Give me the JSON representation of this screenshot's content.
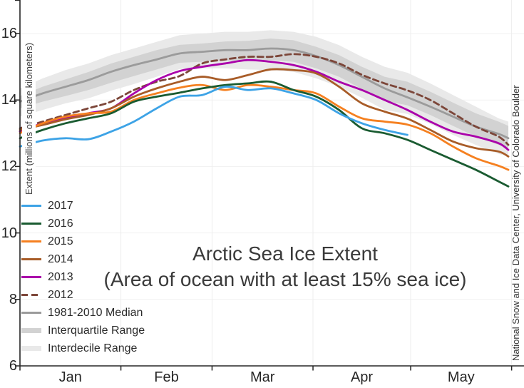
{
  "title": {
    "line1": "Arctic Sea Ice Extent",
    "line2": "(Area of ocean with at least 15% sea ice)"
  },
  "y_axis": {
    "label": "Extent (millions of square kilometers)",
    "tick_values": [
      16,
      14,
      12,
      10,
      8,
      6
    ],
    "gridline_values": [
      16,
      14,
      12,
      10,
      8
    ]
  },
  "x_axis": {
    "month_labels": [
      "Jan",
      "Feb",
      "Mar",
      "Apr",
      "May"
    ],
    "month_start_days": [
      0,
      31,
      59,
      90,
      120,
      151
    ]
  },
  "side_note": "National Snow and Ice Data Center, University of Colorado Boulder",
  "colors": {
    "axis": "#262626",
    "grid_vertical": "#ededed",
    "grid_horizontal": "#f1f1f1",
    "median": "#9b9b9b",
    "interquartile": "#d2d2d2",
    "interdecile": "#e9e9e9",
    "y2017": "#3da3e6",
    "y2016": "#1a5b31",
    "y2015": "#f58020",
    "y2014": "#a85c28",
    "y2013": "#aa00aa",
    "y2012": "#7c4639"
  },
  "legend": [
    {
      "label": "2017",
      "swatch": "line",
      "color": "#3da3e6"
    },
    {
      "label": "2016",
      "swatch": "line",
      "color": "#1a5b31"
    },
    {
      "label": "2015",
      "swatch": "line",
      "color": "#f58020"
    },
    {
      "label": "2014",
      "swatch": "line",
      "color": "#a85c28"
    },
    {
      "label": "2013",
      "swatch": "line",
      "color": "#aa00aa"
    },
    {
      "label": "2012",
      "swatch": "dashed-line",
      "color": "#7c4639"
    },
    {
      "label": "1981-2010 Median",
      "swatch": "line",
      "color": "#9b9b9b"
    },
    {
      "label": "Interquartile Range",
      "swatch": "band",
      "color": "#d2d2d2"
    },
    {
      "label": "Interdecile Range",
      "swatch": "band",
      "color": "#e9e9e9"
    }
  ],
  "chart_data": {
    "type": "line",
    "title": "Arctic Sea Ice Extent",
    "subtitle": "(Area of ocean with at least 15% sea ice)",
    "ylabel": "Extent (millions of square kilometers)",
    "xlabel": "",
    "ylim": [
      6,
      17
    ],
    "x_unit": "day of year (Jan 1 = 0)",
    "grid": true,
    "legend_position": "left",
    "x_days": [
      0,
      7,
      14,
      21,
      28,
      35,
      42,
      49,
      56,
      63,
      70,
      77,
      84,
      91,
      98,
      105,
      112,
      119,
      126,
      133,
      140,
      147,
      150
    ],
    "x_tick_days": [
      0,
      31,
      59,
      90,
      120,
      151
    ],
    "x_tick_labels": [
      "Jan",
      "Feb",
      "Mar",
      "Apr",
      "May"
    ],
    "bands": [
      {
        "name": "Interdecile Range",
        "color": "#e9e9e9",
        "top": [
          14.35,
          14.65,
          14.9,
          15.1,
          15.35,
          15.55,
          15.75,
          15.95,
          16.0,
          16.05,
          16.05,
          16.1,
          16.05,
          15.9,
          15.65,
          15.3,
          15.0,
          14.82,
          14.5,
          14.15,
          13.8,
          13.45,
          13.35
        ],
        "bottom": [
          13.5,
          13.7,
          13.9,
          14.05,
          14.28,
          14.48,
          14.7,
          14.93,
          14.95,
          14.95,
          14.92,
          14.9,
          14.85,
          14.65,
          14.4,
          14.07,
          13.7,
          13.58,
          13.28,
          12.95,
          12.65,
          12.38,
          12.3
        ]
      },
      {
        "name": "Interquartile Range",
        "color": "#d2d2d2",
        "top": [
          14.12,
          14.4,
          14.62,
          14.84,
          15.1,
          15.3,
          15.5,
          15.66,
          15.7,
          15.76,
          15.78,
          15.85,
          15.8,
          15.6,
          15.35,
          15.0,
          14.7,
          14.55,
          14.25,
          13.92,
          13.6,
          13.35,
          13.22
        ],
        "bottom": [
          13.75,
          13.95,
          14.12,
          14.3,
          14.52,
          14.72,
          14.92,
          15.12,
          15.15,
          15.18,
          15.18,
          15.2,
          15.15,
          14.95,
          14.7,
          14.33,
          13.98,
          13.84,
          13.55,
          13.22,
          12.9,
          12.65,
          12.56
        ]
      }
    ],
    "series": [
      {
        "name": "1981-2010 Median",
        "color": "#9b9b9b",
        "style": "solid",
        "width": 2.8,
        "values": [
          13.95,
          14.2,
          14.4,
          14.6,
          14.85,
          15.05,
          15.22,
          15.4,
          15.45,
          15.5,
          15.5,
          15.55,
          15.5,
          15.32,
          15.05,
          14.7,
          14.35,
          14.08,
          13.8,
          13.5,
          13.2,
          12.98,
          12.85
        ]
      },
      {
        "name": "2012",
        "color": "#7c4639",
        "style": "dashed",
        "width": 2.8,
        "values": [
          13.15,
          13.35,
          13.55,
          13.75,
          13.95,
          14.3,
          14.55,
          14.72,
          15.1,
          15.22,
          15.3,
          15.3,
          15.38,
          15.3,
          15.1,
          14.76,
          14.5,
          14.29,
          14.0,
          13.6,
          13.2,
          12.9,
          12.65
        ]
      },
      {
        "name": "2013",
        "color": "#aa00aa",
        "style": "solid",
        "width": 2.8,
        "values": [
          13.05,
          13.3,
          13.45,
          13.6,
          13.75,
          14.2,
          14.6,
          14.87,
          15.0,
          15.1,
          15.2,
          15.15,
          15.05,
          14.85,
          14.55,
          14.3,
          14.0,
          13.7,
          13.35,
          13.05,
          12.9,
          12.7,
          12.5
        ]
      },
      {
        "name": "2014",
        "color": "#a85c28",
        "style": "solid",
        "width": 2.8,
        "values": [
          13.1,
          13.25,
          13.42,
          13.55,
          13.75,
          14.1,
          14.35,
          14.55,
          14.7,
          14.6,
          14.75,
          14.92,
          14.9,
          14.8,
          14.4,
          13.9,
          13.65,
          13.44,
          13.1,
          12.75,
          12.55,
          12.45,
          12.3
        ]
      },
      {
        "name": "2015",
        "color": "#f58020",
        "style": "solid",
        "width": 2.8,
        "values": [
          13.0,
          13.3,
          13.5,
          13.6,
          13.65,
          14.0,
          14.2,
          14.37,
          14.45,
          14.3,
          14.45,
          14.4,
          14.3,
          14.2,
          13.8,
          13.45,
          13.35,
          13.26,
          13.0,
          12.6,
          12.25,
          12.02,
          11.9
        ]
      },
      {
        "name": "2016",
        "color": "#1a5b31",
        "style": "solid",
        "width": 2.8,
        "values": [
          12.85,
          13.1,
          13.3,
          13.45,
          13.6,
          13.95,
          14.1,
          14.22,
          14.35,
          14.45,
          14.5,
          14.55,
          14.3,
          14.1,
          13.7,
          13.15,
          13.0,
          12.8,
          12.5,
          12.2,
          11.9,
          11.55,
          11.4
        ]
      },
      {
        "name": "2017",
        "color": "#3da3e6",
        "style": "solid",
        "width": 2.8,
        "values": [
          12.6,
          12.78,
          12.85,
          12.82,
          13.05,
          13.35,
          13.75,
          14.1,
          14.15,
          14.4,
          14.3,
          14.35,
          14.2,
          14.0,
          13.6,
          13.3,
          13.1,
          12.95,
          null,
          null,
          null,
          null,
          null
        ]
      }
    ]
  }
}
